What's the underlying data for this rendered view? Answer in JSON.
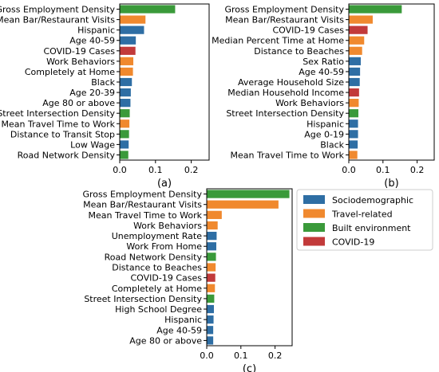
{
  "colors": {
    "Sociodemographic": "#2e6ea4",
    "Travel-related": "#f0892e",
    "Built environment": "#3a9a3a",
    "COVID-19": "#c23a3a"
  },
  "legend": [
    "Sociodemographic",
    "Travel-related",
    "Built environment",
    "COVID-19"
  ],
  "chart_data": [
    {
      "type": "bar",
      "orientation": "horizontal",
      "caption": "(a)",
      "xlim": [
        0,
        0.25
      ],
      "xticks": [
        "0.0",
        "0.1",
        "0.2"
      ],
      "grid": false,
      "categories": [
        "Gross Employment Density",
        "Mean Bar/Restaurant Visits",
        "Hispanic",
        "Age 40-59",
        "COVID-19 Cases",
        "Work Behaviors",
        "Completely at Home",
        "Black",
        "Age 20-39",
        "Age 80 or above",
        "Street Intersection Density",
        "Mean Travel Time to Work",
        "Distance to Transit Stop",
        "Low Wage",
        "Road Network Density"
      ],
      "values": [
        0.155,
        0.072,
        0.068,
        0.045,
        0.044,
        0.038,
        0.037,
        0.034,
        0.031,
        0.03,
        0.028,
        0.027,
        0.026,
        0.025,
        0.024
      ],
      "groups": [
        "Built environment",
        "Travel-related",
        "Sociodemographic",
        "Sociodemographic",
        "COVID-19",
        "Travel-related",
        "Travel-related",
        "Sociodemographic",
        "Sociodemographic",
        "Sociodemographic",
        "Built environment",
        "Travel-related",
        "Built environment",
        "Sociodemographic",
        "Built environment"
      ]
    },
    {
      "type": "bar",
      "orientation": "horizontal",
      "caption": "(b)",
      "xlim": [
        0,
        0.25
      ],
      "xticks": [
        "0.0",
        "0.1",
        "0.2"
      ],
      "grid": false,
      "categories": [
        "Gross Employment Density",
        "Mean Bar/Restaurant Visits",
        "COVID-19 Cases",
        "Median Percent Time at Home",
        "Distance to Beaches",
        "Sex Ratio",
        "Age 40-59",
        "Average Household Size",
        "Median Household Income",
        "Work Behaviors",
        "Street Intersection Density",
        "Hispanic",
        "Age 0-19",
        "Black",
        "Mean Travel Time to Work"
      ],
      "values": [
        0.155,
        0.07,
        0.055,
        0.045,
        0.039,
        0.035,
        0.033,
        0.032,
        0.03,
        0.029,
        0.028,
        0.027,
        0.027,
        0.026,
        0.025
      ],
      "groups": [
        "Built environment",
        "Travel-related",
        "COVID-19",
        "Travel-related",
        "Travel-related",
        "Sociodemographic",
        "Sociodemographic",
        "Sociodemographic",
        "COVID-19",
        "Travel-related",
        "Built environment",
        "Sociodemographic",
        "Sociodemographic",
        "Sociodemographic",
        "Travel-related"
      ]
    },
    {
      "type": "bar",
      "orientation": "horizontal",
      "caption": "(c)",
      "xlim": [
        0,
        0.25
      ],
      "xticks": [
        "0.0",
        "0.1",
        "0.2"
      ],
      "grid": false,
      "categories": [
        "Gross Employment Density",
        "Mean Bar/Restaurant Visits",
        "Mean Travel Time to Work",
        "Work Behaviors",
        "Unemployment Rate",
        "Work From Home",
        "Road Network Density",
        "Distance to Beaches",
        "COVID-19 Cases",
        "Completely at Home",
        "Street Intersection Density",
        "High School Degree",
        "Hispanic",
        "Age 40-59",
        "Age 80 or above"
      ],
      "values": [
        0.242,
        0.21,
        0.044,
        0.032,
        0.029,
        0.028,
        0.027,
        0.026,
        0.025,
        0.024,
        0.022,
        0.021,
        0.02,
        0.019,
        0.019
      ],
      "groups": [
        "Built environment",
        "Travel-related",
        "Travel-related",
        "Travel-related",
        "Sociodemographic",
        "Sociodemographic",
        "Built environment",
        "Travel-related",
        "COVID-19",
        "Travel-related",
        "Built environment",
        "Sociodemographic",
        "Sociodemographic",
        "Sociodemographic",
        "Sociodemographic"
      ]
    }
  ]
}
